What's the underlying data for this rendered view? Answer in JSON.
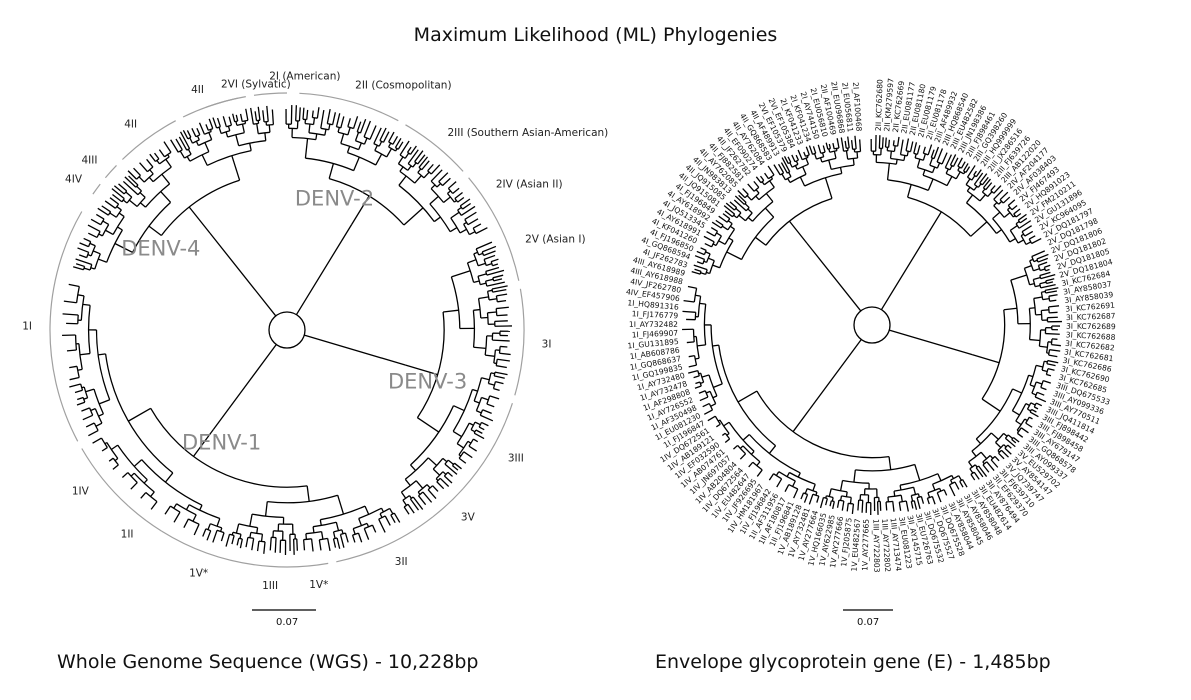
{
  "title": "Maximum Likelihood (ML) Phylogenies",
  "trees": [
    {
      "caption": "Whole Genome Sequence (WGS) - 10,228bp",
      "scale": "0.07",
      "serotypes": [
        "DENV-1",
        "DENV-2",
        "DENV-3",
        "DENV-4"
      ],
      "clades": [
        "2I (American)",
        "2II (Cosmopolitan)",
        "2III (Southern Asian-American)",
        "2IV (Asian II)",
        "2V (Asian I)",
        "3I",
        "3III",
        "3V",
        "3II",
        "1V*",
        "1III",
        "1V*",
        "1II",
        "1IV",
        "1I",
        "4IV",
        "4III",
        "4II",
        "4II",
        "2VI (Sylvatic)"
      ]
    },
    {
      "caption": "Envelope glycoprotein gene (E) - 1,485bp",
      "scale": "0.07",
      "tips": [
        "2II_KC762680",
        "2II_KM279597",
        "2II_KC762669",
        "2II_EU081177",
        "2II_EU081180",
        "2II_EU081179",
        "2II_EU081178",
        "2III_AF489932",
        "2III_HQ868540",
        "2III_EU482582",
        "2III_JN198386",
        "2III_FJ898461",
        "2III_GQ398260",
        "2III_HQ999999",
        "2III_JX286516",
        "2III_FJ639726",
        "2III_AB122020",
        "2IV_AF204177",
        "2IV_AF038403",
        "2V_FJ467493",
        "2V_HQ891023",
        "2V_FM210211",
        "2V_GU131896",
        "2V_KC964095",
        "2V_DQ181797",
        "2V_DQ181798",
        "2V_DQ181806",
        "2V_DQ181802",
        "2V_DQ181805",
        "2V_DQ181804",
        "3I_KC762684",
        "3I_AY858037",
        "3I_AY858039",
        "3I_KC762691",
        "3I_KC762687",
        "3I_KC762689",
        "3I_KC762688",
        "3I_KC762682",
        "3I_KC762681",
        "3I_KC762686",
        "3I_KC762690",
        "3I_KC762685",
        "3III_DQ675533",
        "3III_AY099336",
        "3III_AY770511",
        "3III_JQ411814",
        "3III_FJ898442",
        "3III_FJ898458",
        "3III_AY679147",
        "3III_GQ868578",
        "3III_AY099337",
        "3V_EU529702",
        "3V_AY854147",
        "3V_JQ739747",
        "3II_FJ639710",
        "3II_EF629370",
        "3II_AY876494",
        "3II_EU482614",
        "3II_AY858048",
        "3II_AY858046",
        "3II_AY858045",
        "3II_AY858044",
        "3II_DQ675528",
        "3II_DQ675527",
        "3II_DQ675532",
        "3II_EU726763",
        "3II_AY145715",
        "3II_EU081223",
        "1III_AY713474",
        "1III_AY722802",
        "1III_AY722803",
        "1V_AY277665",
        "1V_EU482567",
        "1V_FJ205875",
        "1V_AY277666",
        "1V_AY622985",
        "1V_HQ166035",
        "1V_AY277664",
        "1V_AY732481",
        "1V_AB189128",
        "1II_FJ196841",
        "1II_AF180817",
        "1II_AF311956",
        "1IV_FJ196842",
        "1IV_HM181967",
        "1IV_JF926695",
        "1IV_EU482647",
        "1IV_DQ672564",
        "1IV_AB204804",
        "1IV_JN697057",
        "1IV_AB074761",
        "1IV_EF032590",
        "1IV_AB189121",
        "1IV_DQ672561",
        "1I_FJ196847",
        "1I_EU081230",
        "1I_AF350498",
        "1I_AY726552",
        "1I_AF298808",
        "1I_AY732478",
        "1I_AY732480",
        "1I_GQ199835",
        "1I_GQ868637",
        "1I_AB608786",
        "1I_GU131895",
        "1I_FJ469907",
        "1I_AY732482",
        "1I_FJ176779",
        "1I_HQ891316",
        "4IV_EF457906",
        "4IV_JF262780",
        "4III_AY618988",
        "4III_AY618989",
        "4I_JF262783",
        "4I_GQ868594",
        "4I_FJ196850",
        "4I_KF041260",
        "4I_AY618991",
        "4I_JQ513345",
        "4I_AY618992",
        "4I_FJ196849",
        "4II_JQ915081",
        "4II_JQ915085",
        "4II_JN983813",
        "4II_AY762085",
        "4II_FJ882581",
        "4II_JF262782",
        "4II_EF090274",
        "4II_AY762084",
        "4II_GQ868583",
        "4II_AF489913",
        "2VI_EF105379",
        "2VI_EF105384",
        "2I_KF041233",
        "2I_KF041234",
        "2I_AY744150",
        "2I_EU056810",
        "2II_AF100469",
        "2II_EU096868",
        "2I_EU056811",
        "2I_AF100468"
      ]
    }
  ]
}
